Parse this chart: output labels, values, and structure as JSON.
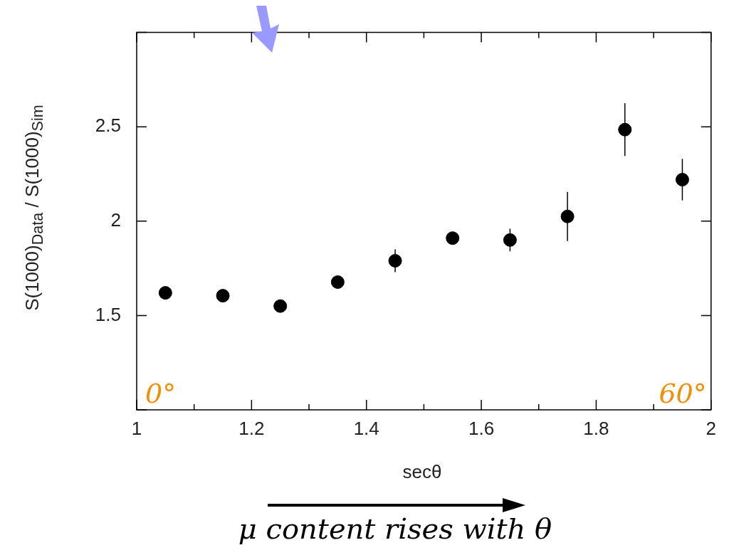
{
  "chart_data": {
    "type": "scatter",
    "xlabel": "secθ",
    "ylabel": "S(1000)$_{Data}$ / S(1000)$_{Sim}$",
    "x": [
      1.05,
      1.15,
      1.25,
      1.35,
      1.45,
      1.55,
      1.65,
      1.75,
      1.85,
      1.95
    ],
    "series": [
      {
        "color": "#000000",
        "values": [
          1.62,
          1.605,
          1.55,
          1.677,
          1.79,
          1.91,
          1.9,
          2.025,
          2.485,
          2.22
        ],
        "errors": [
          0.02,
          0.02,
          0.02,
          0.02,
          0.06,
          0.03,
          0.06,
          0.13,
          0.14,
          0.11
        ]
      }
    ],
    "xlim": [
      1,
      2
    ],
    "ylim": [
      1,
      3
    ],
    "xticks": [
      1,
      {
        "value": 1.1,
        "label": null
      },
      1.2,
      {
        "value": 1.3,
        "label": null
      },
      1.4,
      {
        "value": 1.5,
        "label": null
      },
      1.6,
      {
        "value": 1.7,
        "label": null
      },
      1.8,
      {
        "value": 1.9,
        "label": null
      },
      2
    ],
    "yticks": [
      {
        "value": 1,
        "label": null
      },
      1.5,
      2,
      2.5,
      {
        "value": 3,
        "label": null
      }
    ],
    "grid": false,
    "legend": false,
    "marker": "circle",
    "annotations": [
      "0°",
      "60°",
      "μ content rises with θ"
    ]
  }
}
